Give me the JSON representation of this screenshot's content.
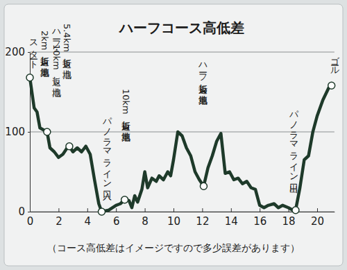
{
  "chart_data": {
    "type": "line",
    "title": "ハーフコース高低差",
    "caption": "（コース高低差はイメージですので多少誤差があります）",
    "color": "#1e3a2a",
    "grid": true,
    "xlim": [
      0,
      21.2
    ],
    "ylim": [
      0,
      200
    ],
    "xticks": [
      0,
      2,
      4,
      6,
      8,
      10,
      12,
      14,
      16,
      18,
      20
    ],
    "yticks": [
      0,
      100,
      200
    ],
    "x": [
      0,
      0.3,
      0.5,
      0.7,
      1.0,
      1.2,
      1.4,
      1.7,
      2.0,
      2.3,
      2.6,
      2.75,
      3.0,
      3.3,
      3.6,
      3.9,
      4.2,
      4.5,
      4.8,
      5.0,
      5.5,
      6.0,
      6.3,
      6.6,
      6.9,
      7.1,
      7.3,
      7.5,
      7.8,
      8.0,
      8.2,
      8.5,
      8.8,
      9.0,
      9.3,
      9.6,
      9.8,
      10.0,
      10.3,
      10.6,
      10.9,
      11.2,
      11.5,
      11.8,
      12.1,
      12.4,
      12.7,
      13.0,
      13.3,
      13.6,
      13.9,
      14.2,
      14.5,
      14.8,
      15.1,
      15.4,
      15.7,
      16.0,
      16.3,
      16.6,
      17.0,
      17.3,
      17.6,
      18.0,
      18.3,
      18.5,
      18.8,
      19.1,
      19.4,
      19.7,
      20.0,
      20.4,
      20.8,
      21.0
    ],
    "values": [
      168,
      130,
      125,
      105,
      102,
      100,
      80,
      75,
      68,
      72,
      80,
      82,
      75,
      80,
      75,
      82,
      72,
      40,
      10,
      0,
      2,
      8,
      10,
      15,
      14,
      5,
      20,
      12,
      28,
      50,
      30,
      42,
      38,
      45,
      40,
      50,
      45,
      65,
      100,
      95,
      80,
      70,
      50,
      40,
      32,
      55,
      70,
      88,
      98,
      48,
      50,
      40,
      42,
      35,
      38,
      30,
      28,
      8,
      5,
      8,
      10,
      5,
      8,
      5,
      2,
      2,
      30,
      65,
      70,
      100,
      120,
      140,
      155,
      158
    ],
    "annotations": [
      {
        "x": 0,
        "y": 168,
        "text": [
          "スタート"
        ]
      },
      {
        "x": 1.2,
        "y": 100,
        "text": [
          "2km折返し地点（第1）"
        ]
      },
      {
        "x": 2.75,
        "y": 82,
        "text": [
          "5.4km折返し地点",
          "ハーフ・10km返し地点"
        ]
      },
      {
        "x": 5.0,
        "y": 0,
        "text": [
          "パノラマライン入口"
        ]
      },
      {
        "x": 6.6,
        "y": 15,
        "text": [
          "10km折返し地点（第2）"
        ]
      },
      {
        "x": 12.1,
        "y": 32,
        "text": [
          "ハーフ折返し地点（第2）"
        ]
      },
      {
        "x": 18.5,
        "y": 2,
        "text": [
          "パノラマライン出口"
        ]
      },
      {
        "x": 21.0,
        "y": 158,
        "text": [
          "ゴール"
        ]
      }
    ]
  }
}
